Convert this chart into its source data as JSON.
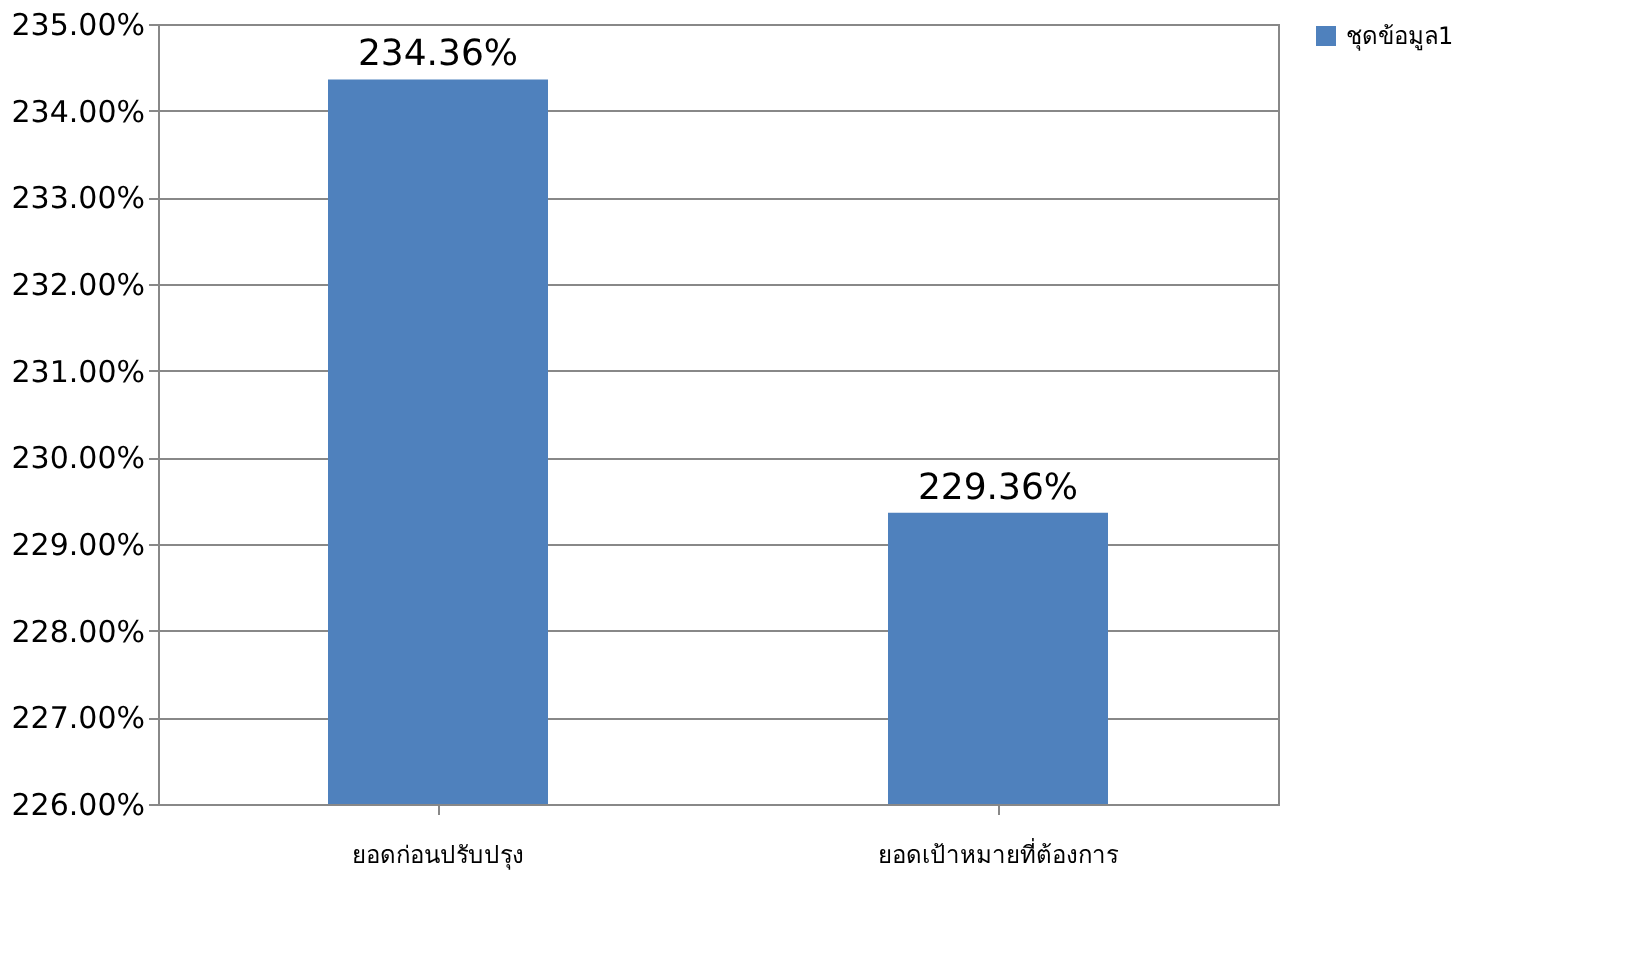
{
  "chart_data": {
    "type": "bar",
    "categories": [
      "ยอดก่อนปรับปรุง",
      "ยอดเป้าหมายที่ต้องการ"
    ],
    "series": [
      {
        "name": "ชุดข้อมูล1",
        "color": "#4f81bd",
        "values": [
          234.36,
          229.36
        ],
        "value_labels": [
          "234.36%",
          "229.36%"
        ]
      }
    ],
    "ylim": [
      226,
      235
    ],
    "yticks": [
      {
        "value": 226,
        "label": "226.00%"
      },
      {
        "value": 227,
        "label": "227.00%"
      },
      {
        "value": 228,
        "label": "228.00%"
      },
      {
        "value": 229,
        "label": "229.00%"
      },
      {
        "value": 230,
        "label": "230.00%"
      },
      {
        "value": 231,
        "label": "231.00%"
      },
      {
        "value": 232,
        "label": "232.00%"
      },
      {
        "value": 233,
        "label": "233.00%"
      },
      {
        "value": 234,
        "label": "234.00%"
      },
      {
        "value": 235,
        "label": "235.00%"
      }
    ],
    "grid": "y",
    "legend": "right"
  }
}
